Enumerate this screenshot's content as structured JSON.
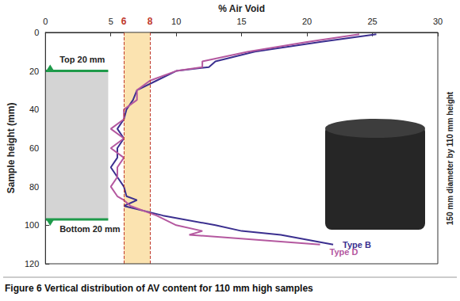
{
  "chart_data": {
    "type": "line",
    "title": "Figure 6 Vertical distribution of AV content for 110 mm high samples",
    "x_label": "% Air Void",
    "y_label": "Sample height (mm)",
    "xlim": [
      0,
      30
    ],
    "xticks": [
      0,
      5,
      10,
      15,
      20,
      25,
      30
    ],
    "ylim": [
      0,
      120
    ],
    "yticks": [
      0,
      20,
      40,
      60,
      80,
      100,
      120
    ],
    "grid": false,
    "y": [
      1,
      5,
      10,
      15,
      18,
      20,
      25,
      30,
      35,
      40,
      45,
      50,
      55,
      60,
      65,
      70,
      75,
      80,
      85,
      87,
      90,
      95,
      100,
      103,
      105,
      110
    ],
    "series": [
      {
        "name": "Type B",
        "color": "#3b2f8f",
        "values": [
          25.3,
          21,
          16,
          13,
          12.5,
          10,
          8.5,
          7,
          6.7,
          6.2,
          6,
          5.5,
          6,
          5.5,
          5.5,
          5,
          5.5,
          6,
          6.2,
          7,
          6,
          9,
          13,
          15,
          18,
          22
        ]
      },
      {
        "name": "Type D",
        "color": "#b4589f",
        "values": [
          24,
          20,
          15.5,
          12,
          12,
          10,
          8,
          7,
          7,
          6,
          6,
          5,
          6,
          5,
          6,
          5.5,
          5.5,
          5,
          5.5,
          6,
          6.5,
          8.5,
          10,
          12,
          11,
          21
        ]
      }
    ],
    "band": {
      "range": [
        6,
        8
      ],
      "labels": [
        "6",
        "8"
      ],
      "color": "#fbe3b0",
      "line_color": "#c0392b",
      "line_style": "dashed"
    },
    "core_region": {
      "xlim": [
        0,
        4.8
      ],
      "ylim": [
        20,
        97
      ],
      "color": "#d4d4d4"
    },
    "boundaries": {
      "values": [
        20,
        97
      ],
      "xlim": [
        0,
        4.8
      ],
      "color": "#1e9a4a"
    },
    "annotations": [
      {
        "text": "Top 20 mm",
        "x": 0.6,
        "y": 14
      },
      {
        "text": "Bottom 20 mm",
        "x": 0.6,
        "y": 102
      }
    ],
    "side_note": "150 mm diameter by 110 mm height"
  }
}
